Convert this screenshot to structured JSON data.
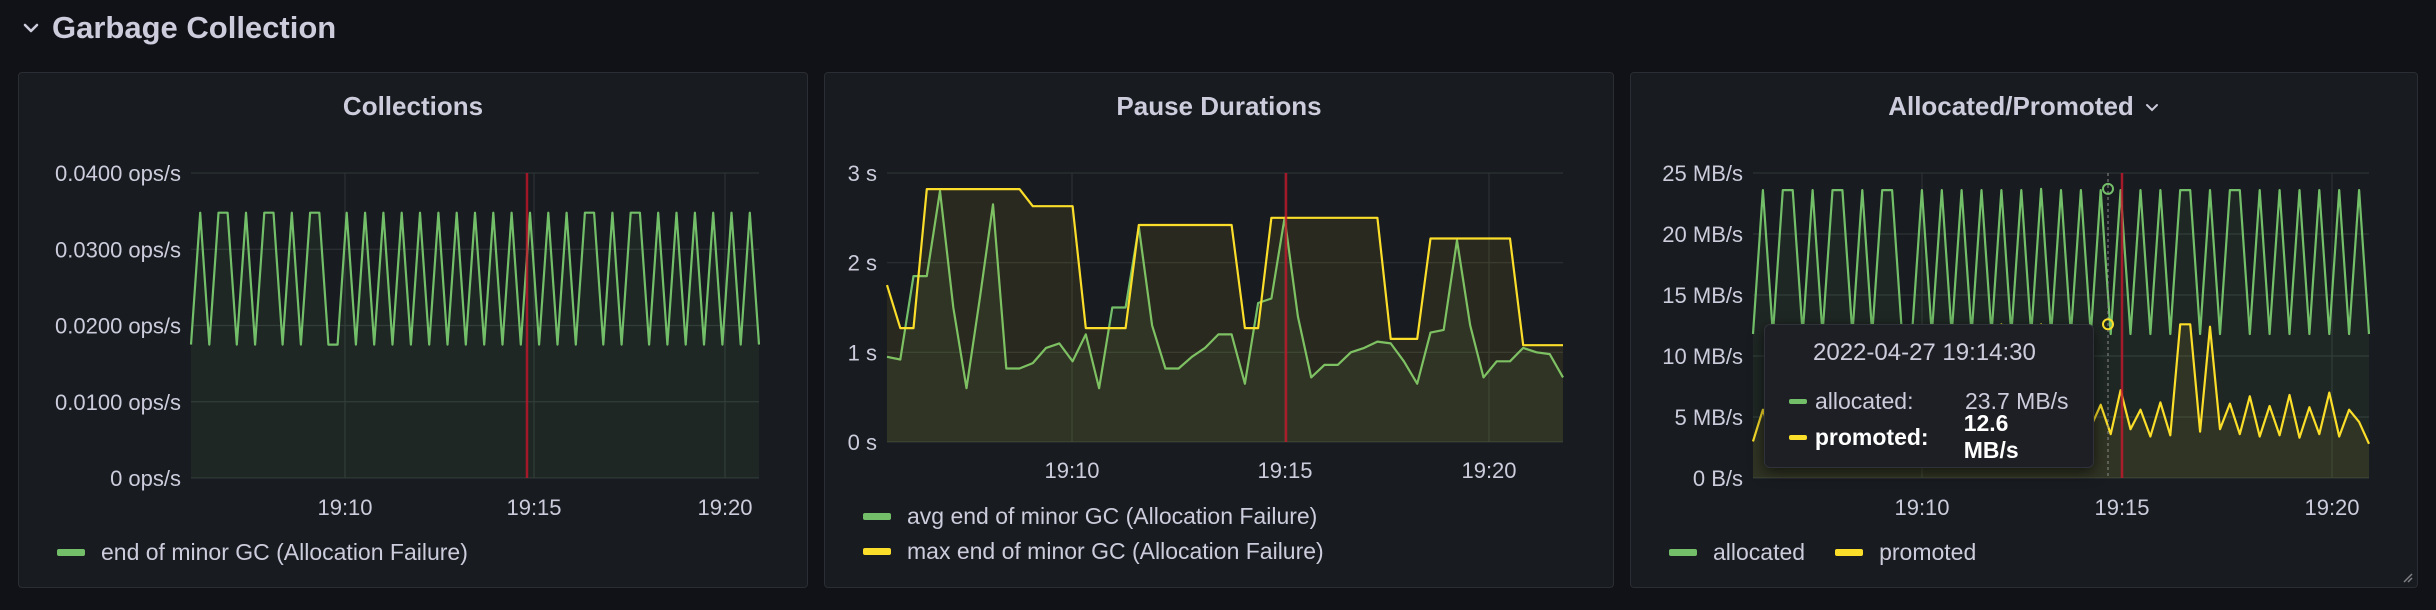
{
  "row": {
    "title": "Garbage Collection",
    "icon": "chevron-down-icon"
  },
  "colors": {
    "green": "#73bf69",
    "yellow": "#fade2a",
    "annotation": "#c4162a",
    "grid": "#2c3235",
    "axis_text": "#ccccdc"
  },
  "panels": [
    {
      "title": "Collections",
      "legend": [
        "end of minor GC (Allocation Failure)"
      ]
    },
    {
      "title": "Pause Durations",
      "legend": [
        "avg end of minor GC (Allocation Failure)",
        "max end of minor GC (Allocation Failure)"
      ]
    },
    {
      "title": "Allocated/Promoted",
      "has_menu": true,
      "legend": [
        "allocated",
        "promoted"
      ]
    }
  ],
  "tooltip": {
    "time": "2022-04-27 19:14:30",
    "rows": [
      {
        "label": "allocated:",
        "value": "23.7 MB/s"
      },
      {
        "label": "promoted:",
        "value": "12.6 MB/s"
      }
    ]
  },
  "chart_data": [
    {
      "type": "line",
      "title": "Collections",
      "x_ticks": [
        "19:10",
        "19:15",
        "19:20"
      ],
      "y_ticks": [
        "0 ops/s",
        "0.0100 ops/s",
        "0.0200 ops/s",
        "0.0300 ops/s",
        "0.0400 ops/s"
      ],
      "ylim": [
        0,
        0.04
      ],
      "annotation_x": "19:14:30",
      "series": [
        {
          "name": "end of minor GC (Allocation Failure)",
          "values": [
            0.0175,
            0.0348,
            0.0175,
            0.0348,
            0.0348,
            0.0175,
            0.0348,
            0.0175,
            0.0348,
            0.0348,
            0.0175,
            0.0348,
            0.0175,
            0.0348,
            0.0348,
            0.0175,
            0.0175,
            0.0348,
            0.0175,
            0.0348,
            0.0175,
            0.0348,
            0.0175,
            0.0348,
            0.0175,
            0.0348,
            0.0175,
            0.0348,
            0.0175,
            0.0348,
            0.0175,
            0.0348,
            0.0175,
            0.0348,
            0.0175,
            0.0348,
            0.0175,
            0.0348,
            0.0175,
            0.0348,
            0.0175,
            0.0348,
            0.0175,
            0.0348,
            0.0348,
            0.0175,
            0.0348,
            0.0175,
            0.0348,
            0.0348,
            0.0175,
            0.0348,
            0.0175,
            0.0348,
            0.0175,
            0.0348,
            0.0175,
            0.0348,
            0.0175,
            0.0348,
            0.0175,
            0.0348,
            0.0175
          ]
        }
      ]
    },
    {
      "type": "line",
      "title": "Pause Durations",
      "x_ticks": [
        "19:10",
        "19:15",
        "19:20"
      ],
      "y_ticks": [
        "0 s",
        "1 s",
        "2 s",
        "3 s"
      ],
      "ylim": [
        0,
        3
      ],
      "annotation_x": "19:14:30",
      "series": [
        {
          "name": "avg end of minor GC (Allocation Failure)",
          "values": [
            0.95,
            0.92,
            1.85,
            1.85,
            2.8,
            1.5,
            0.6,
            1.6,
            2.65,
            0.82,
            0.82,
            0.88,
            1.05,
            1.1,
            0.9,
            1.2,
            0.6,
            1.5,
            1.5,
            2.4,
            1.3,
            0.82,
            0.82,
            0.95,
            1.05,
            1.2,
            1.2,
            0.65,
            1.55,
            1.6,
            2.5,
            1.4,
            0.72,
            0.86,
            0.86,
            1.0,
            1.05,
            1.12,
            1.1,
            0.9,
            0.65,
            1.22,
            1.25,
            2.25,
            1.3,
            0.72,
            0.9,
            0.9,
            1.05,
            1.0,
            0.98,
            0.72
          ]
        },
        {
          "name": "max end of minor GC (Allocation Failure)",
          "values": [
            1.75,
            1.27,
            1.27,
            2.82,
            2.82,
            2.82,
            2.82,
            2.82,
            2.82,
            2.82,
            2.82,
            2.63,
            2.63,
            2.63,
            2.63,
            1.27,
            1.27,
            1.27,
            1.27,
            2.42,
            2.42,
            2.42,
            2.42,
            2.42,
            2.42,
            2.42,
            2.42,
            1.27,
            1.27,
            2.5,
            2.5,
            2.5,
            2.5,
            2.5,
            2.5,
            2.5,
            2.5,
            2.5,
            1.15,
            1.15,
            1.15,
            2.27,
            2.27,
            2.27,
            2.27,
            2.27,
            2.27,
            2.27,
            1.08,
            1.08,
            1.08,
            1.08
          ]
        }
      ]
    },
    {
      "type": "line",
      "title": "Allocated/Promoted",
      "x_ticks": [
        "19:10",
        "19:15",
        "19:20"
      ],
      "y_ticks": [
        "0 B/s",
        "5 MB/s",
        "10 MB/s",
        "15 MB/s",
        "20 MB/s",
        "25 MB/s"
      ],
      "ylim": [
        0,
        25
      ],
      "annotation_x": "19:14:30",
      "series": [
        {
          "name": "allocated",
          "values": [
            11.8,
            23.6,
            11.8,
            23.6,
            23.6,
            11.8,
            23.6,
            11.8,
            23.6,
            23.6,
            11.8,
            23.6,
            11.8,
            23.6,
            23.6,
            11.8,
            11.8,
            23.6,
            11.8,
            23.6,
            11.8,
            23.6,
            11.8,
            23.6,
            11.8,
            23.6,
            11.8,
            23.6,
            11.8,
            23.7,
            11.8,
            23.6,
            11.8,
            23.6,
            11.8,
            23.6,
            11.8,
            23.6,
            11.8,
            23.6,
            11.8,
            23.6,
            11.8,
            23.6,
            23.6,
            11.8,
            23.6,
            11.8,
            23.6,
            23.6,
            11.8,
            23.6,
            11.8,
            23.6,
            11.8,
            23.6,
            11.8,
            23.6,
            11.8,
            23.6,
            11.8,
            23.6,
            11.8
          ]
        },
        {
          "name": "promoted",
          "values": [
            3.0,
            5.6,
            3.0,
            5.8,
            3.6,
            5.2,
            3.5,
            5.6,
            3.4,
            5.5,
            3.2,
            5.8,
            3.3,
            5.4,
            3.6,
            5.7,
            3.1,
            5.3,
            3.8,
            5.2,
            3.2,
            5.9,
            3.4,
            5.6,
            3.3,
            12.6,
            3.2,
            7.0,
            4.0,
            12.6,
            9.5,
            12.0,
            3.1,
            7.8,
            4.2,
            6.0,
            3.6,
            7.2,
            4.0,
            5.6,
            3.4,
            6.2,
            3.5,
            12.6,
            12.6,
            3.8,
            12.4,
            4.0,
            6.1,
            3.6,
            6.7,
            3.4,
            5.9,
            3.5,
            6.8,
            3.3,
            5.8,
            3.6,
            7.0,
            3.4,
            5.6,
            4.6,
            2.8
          ]
        }
      ]
    }
  ]
}
